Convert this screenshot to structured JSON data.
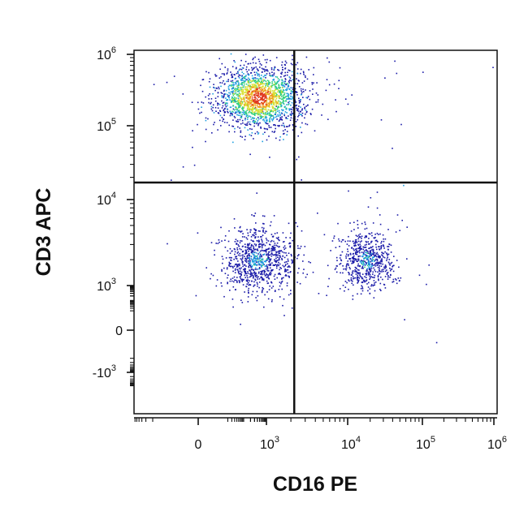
{
  "chart_data": {
    "type": "scatter",
    "plot_style": "flow cytometry density dot plot (pseudocolor: blue low density -> green -> yellow -> red high density)",
    "xlabel": "CD16 PE",
    "ylabel": "CD3 APC",
    "x_scale": "biexponential (linear near 0, log above ~10^3)",
    "y_scale": "biexponential (linear near 0, log above ~10^3)",
    "x_ticks": [
      {
        "value": 0,
        "base": "0",
        "exp": ""
      },
      {
        "value": 1000,
        "base": "10",
        "exp": "3"
      },
      {
        "value": 10000,
        "base": "10",
        "exp": "4"
      },
      {
        "value": 100000,
        "base": "10",
        "exp": "5"
      },
      {
        "value": 1000000,
        "base": "10",
        "exp": "6"
      }
    ],
    "y_ticks": [
      {
        "value": 1000000,
        "base": "10",
        "exp": "6"
      },
      {
        "value": 100000,
        "base": "10",
        "exp": "5"
      },
      {
        "value": 10000,
        "base": "10",
        "exp": "4"
      },
      {
        "value": 1000,
        "base": "10",
        "exp": "3"
      },
      {
        "value": 0,
        "base": "0",
        "exp": ""
      },
      {
        "value": -1000,
        "base": "-10",
        "exp": "3"
      }
    ],
    "quadrant_gates": {
      "x": 2200,
      "y": 17000
    },
    "populations": [
      {
        "quadrant": "upper-left",
        "phenotype": "CD3+ CD16-",
        "center": {
          "x": 450,
          "y": 250000
        },
        "events": 1800,
        "peak_density": "high"
      },
      {
        "quadrant": "lower-left",
        "phenotype": "CD3- CD16-",
        "center": {
          "x": 420,
          "y": 2000
        },
        "events": 900,
        "peak_density": "low"
      },
      {
        "quadrant": "lower-right",
        "phenotype": "CD3- CD16+",
        "center": {
          "x": 18000,
          "y": 2000
        },
        "events": 650,
        "peak_density": "low"
      },
      {
        "quadrant": "upper-right",
        "phenotype": "CD3+ CD16+",
        "center": {
          "x": 4000,
          "y": 250000
        },
        "events": 45,
        "peak_density": "very low"
      }
    ],
    "density_colors": [
      "#1a1aa8",
      "#1f9fe0",
      "#2fd07a",
      "#d8e030",
      "#f0a020",
      "#e03820"
    ],
    "grid": false,
    "legend": "none"
  }
}
